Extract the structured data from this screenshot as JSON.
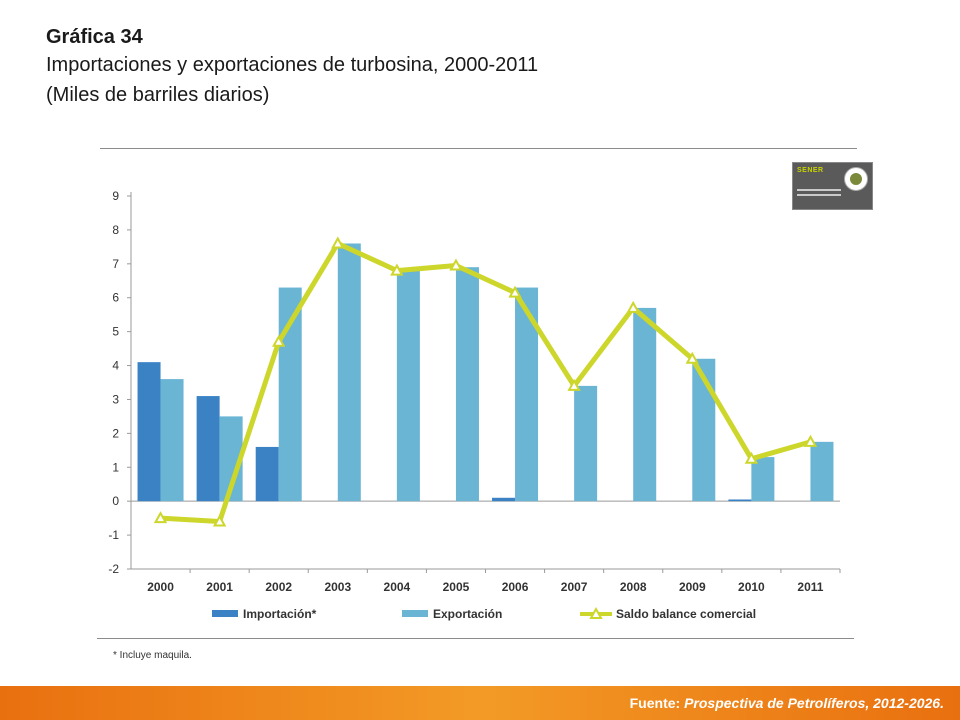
{
  "header": {
    "title": "Gráfica 34",
    "subtitle": "Importaciones y exportaciones de turbosina, 2000-2011",
    "units": "(Miles de barriles diarios)"
  },
  "logo": {
    "label": "SENER"
  },
  "footnote": "* Incluye maquila.",
  "footer": {
    "prefix": "Fuente: ",
    "source": "Prospectiva de Petrolíferos, 2012-2026."
  },
  "colors": {
    "importacion": "#3a82c4",
    "exportacion": "#6ab4d4",
    "saldo": "#cdd62a",
    "footer": "#ef8419"
  },
  "chart_data": {
    "type": "bar",
    "categories": [
      "2000",
      "2001",
      "2002",
      "2003",
      "2004",
      "2005",
      "2006",
      "2007",
      "2008",
      "2009",
      "2010",
      "2011"
    ],
    "series": [
      {
        "name": "Importación*",
        "kind": "bar",
        "values": [
          4.1,
          3.1,
          1.6,
          0,
          0,
          0,
          0.1,
          0,
          0,
          0,
          0.05,
          0
        ]
      },
      {
        "name": "Exportación",
        "kind": "bar",
        "values": [
          3.6,
          2.5,
          6.3,
          7.6,
          6.8,
          6.9,
          6.3,
          3.4,
          5.7,
          4.2,
          1.3,
          1.75
        ]
      },
      {
        "name": "Saldo balance comercial",
        "kind": "line",
        "marker": "triangle",
        "values": [
          -0.5,
          -0.6,
          4.7,
          7.6,
          6.8,
          6.95,
          6.15,
          3.4,
          5.7,
          4.2,
          1.25,
          1.75
        ]
      }
    ],
    "yticks": [
      9,
      8,
      7,
      6,
      5,
      4,
      3,
      2,
      1,
      0,
      -1,
      -2
    ],
    "ylim": [
      -2,
      9
    ],
    "legend": "bottom",
    "grid": false
  }
}
